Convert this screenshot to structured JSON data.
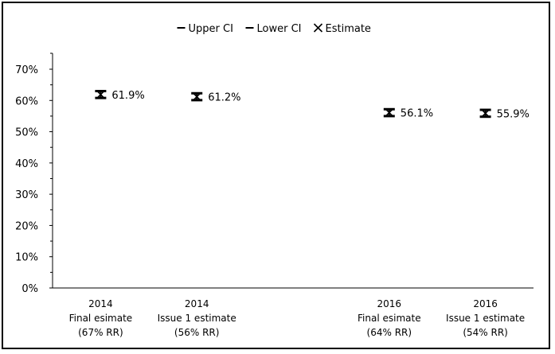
{
  "chart_data": {
    "type": "scatter",
    "legend": {
      "placement": "top-center",
      "entries": [
        {
          "label": "Upper CI",
          "marker": "dash"
        },
        {
          "label": "Lower CI",
          "marker": "dash"
        },
        {
          "label": "Estimate",
          "marker": "x"
        }
      ]
    },
    "y_axis": {
      "min": 0,
      "max": 70,
      "step": 10,
      "tick_labels": [
        "0%",
        "10%",
        "20%",
        "30%",
        "40%",
        "50%",
        "60%",
        "70%"
      ]
    },
    "x_axis": {
      "slots": 5,
      "categories": [
        {
          "slot": 0,
          "lines": [
            "2014",
            "Final esimate",
            "(67% RR)"
          ]
        },
        {
          "slot": 1,
          "lines": [
            "2014",
            "Issue 1 estimate",
            "(56% RR)"
          ]
        },
        {
          "slot": 3,
          "lines": [
            "2016",
            "Final esimate",
            "(64% RR)"
          ]
        },
        {
          "slot": 4,
          "lines": [
            "2016",
            "Issue 1 estimate",
            "(54% RR)"
          ]
        }
      ]
    },
    "points": [
      {
        "slot": 0,
        "estimate": 61.9,
        "upper_ci": 63.0,
        "lower_ci": 60.8,
        "label": "61.9%"
      },
      {
        "slot": 1,
        "estimate": 61.2,
        "upper_ci": 62.3,
        "lower_ci": 60.1,
        "label": "61.2%"
      },
      {
        "slot": 3,
        "estimate": 56.1,
        "upper_ci": 57.2,
        "lower_ci": 55.0,
        "label": "56.1%"
      },
      {
        "slot": 4,
        "estimate": 55.9,
        "upper_ci": 57.0,
        "lower_ci": 54.8,
        "label": "55.9%"
      }
    ],
    "colors": {
      "marks": "#000000",
      "background": "#ffffff"
    }
  }
}
